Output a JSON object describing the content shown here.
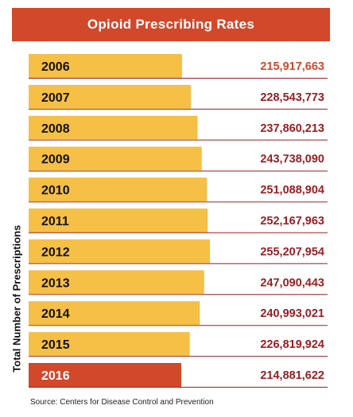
{
  "colors": {
    "title_band": "#d2482b",
    "bar_default": "#f6bf45",
    "bar_highlight": "#d2482b",
    "value_text": "#9a1d22",
    "value_text_first": "#d2482b",
    "rule_line": "#9a1d22"
  },
  "chart_data": {
    "type": "bar",
    "orientation": "horizontal",
    "title": "Opioid Prescribing Rates",
    "ylabel": "Total Number of Prescriptions",
    "categories": [
      "2006",
      "2007",
      "2008",
      "2009",
      "2010",
      "2011",
      "2012",
      "2013",
      "2014",
      "2015",
      "2016"
    ],
    "values": [
      215917663,
      228543773,
      237860213,
      243738090,
      251088904,
      252167963,
      255207954,
      247090443,
      240993021,
      226819924,
      214881622
    ],
    "value_labels": [
      "215,917,663",
      "228,543,773",
      "237,860,213",
      "243,738,090",
      "251,088,904",
      "252,167,963",
      "255,207,954",
      "247,090,443",
      "240,993,021",
      "226,819,924",
      "214,881,622"
    ],
    "highlight_category": "2016",
    "legend": "none",
    "grid": false
  },
  "footer": {
    "source": "Source: Centers for Disease Control and Prevention"
  }
}
